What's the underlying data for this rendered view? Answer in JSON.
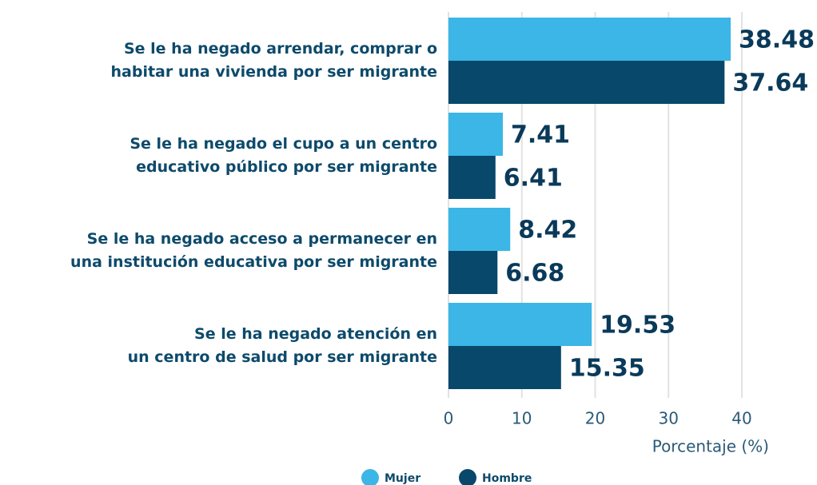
{
  "chart_data": {
    "type": "bar",
    "orientation": "horizontal",
    "categories": [
      [
        "Se le ha negado arrendar, comprar o",
        "habitar una vivienda por ser migrante"
      ],
      [
        "Se le ha negado el cupo a un centro",
        "educativo público por ser migrante"
      ],
      [
        "Se le ha negado acceso a permanecer en",
        "una institución educativa por ser migrante"
      ],
      [
        "Se le ha negado atención en",
        "un centro de salud por ser migrante"
      ]
    ],
    "series": [
      {
        "name": "Mujer",
        "color": "#3bb6e6",
        "values": [
          38.48,
          7.41,
          8.42,
          19.53
        ]
      },
      {
        "name": "Hombre",
        "color": "#08486b",
        "values": [
          37.64,
          6.41,
          6.68,
          15.35
        ]
      }
    ],
    "xlabel": "Porcentaje (%)",
    "xlim": [
      0,
      40
    ],
    "xticks": [
      0,
      10,
      20,
      30,
      40
    ],
    "grid": true,
    "legend": "bottom"
  }
}
